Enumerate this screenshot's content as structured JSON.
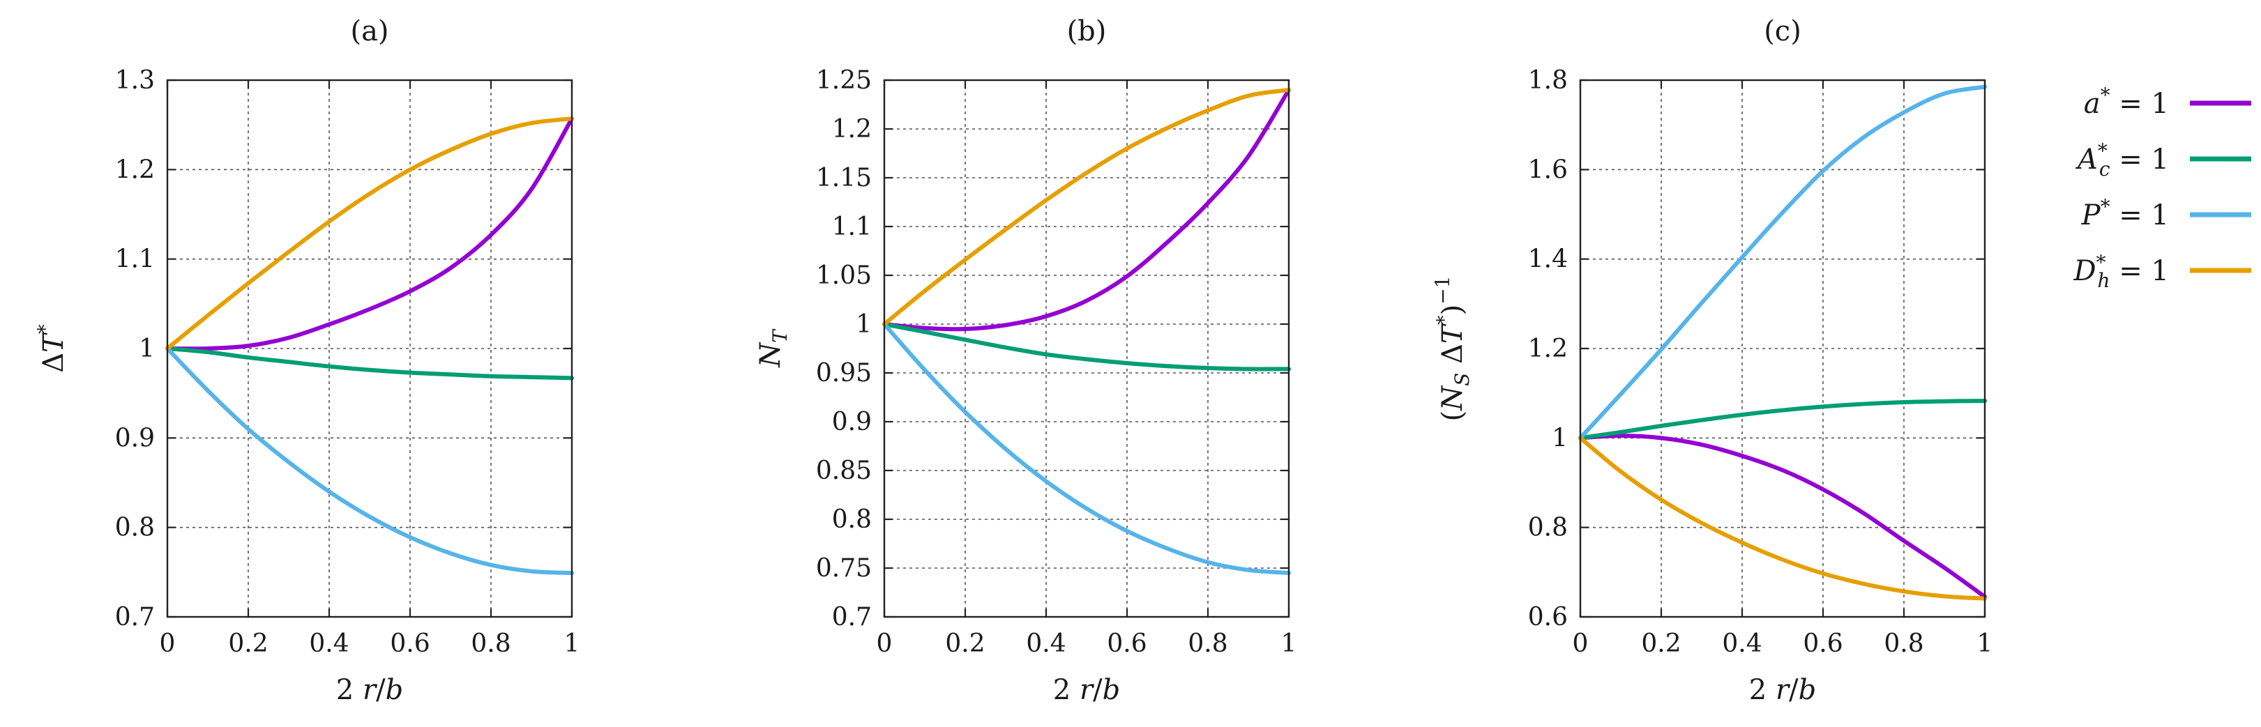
{
  "chart_data": [
    {
      "type": "line",
      "title": "(a)",
      "xlabel": "2 r/b",
      "ylabel": "ΔT*",
      "xlim": [
        0,
        1
      ],
      "ylim": [
        0.7,
        1.3
      ],
      "xticks": [
        "0",
        "0.2",
        "0.4",
        "0.6",
        "0.8",
        "1"
      ],
      "yticks": [
        "0.7",
        "0.8",
        "0.9",
        "1",
        "1.1",
        "1.2",
        "1.3"
      ],
      "grid": true,
      "series": [
        {
          "name": "a* = 1",
          "color": "#9400d3",
          "x": [
            0,
            0.1,
            0.2,
            0.3,
            0.4,
            0.5,
            0.6,
            0.7,
            0.8,
            0.9,
            1.0
          ],
          "values": [
            1.0,
            1.0,
            1.003,
            1.012,
            1.027,
            1.044,
            1.064,
            1.09,
            1.127,
            1.178,
            1.257
          ]
        },
        {
          "name": "A*c = 1",
          "color": "#009e73",
          "x": [
            0,
            0.1,
            0.2,
            0.3,
            0.4,
            0.5,
            0.6,
            0.7,
            0.8,
            0.9,
            1.0
          ],
          "values": [
            1.0,
            0.996,
            0.99,
            0.985,
            0.98,
            0.976,
            0.973,
            0.971,
            0.969,
            0.968,
            0.967
          ]
        },
        {
          "name": "P* = 1",
          "color": "#56b4e9",
          "x": [
            0,
            0.1,
            0.2,
            0.3,
            0.4,
            0.5,
            0.6,
            0.7,
            0.8,
            0.9,
            1.0
          ],
          "values": [
            1.0,
            0.953,
            0.91,
            0.873,
            0.84,
            0.812,
            0.789,
            0.771,
            0.758,
            0.751,
            0.749
          ]
        },
        {
          "name": "D*h = 1",
          "color": "#e69f00",
          "x": [
            0,
            0.1,
            0.2,
            0.3,
            0.4,
            0.5,
            0.6,
            0.7,
            0.8,
            0.9,
            1.0
          ],
          "values": [
            1.0,
            1.037,
            1.073,
            1.108,
            1.142,
            1.173,
            1.2,
            1.222,
            1.24,
            1.252,
            1.257
          ]
        }
      ]
    },
    {
      "type": "line",
      "title": "(b)",
      "xlabel": "2 r/b",
      "ylabel": "N_T",
      "xlim": [
        0,
        1
      ],
      "ylim": [
        0.7,
        1.25
      ],
      "xticks": [
        "0",
        "0.2",
        "0.4",
        "0.6",
        "0.8",
        "1"
      ],
      "yticks": [
        "0.7",
        "0.75",
        "0.8",
        "0.85",
        "0.9",
        "0.95",
        "1",
        "1.05",
        "1.1",
        "1.15",
        "1.2",
        "1.25"
      ],
      "grid": true,
      "series": [
        {
          "name": "a* = 1",
          "color": "#9400d3",
          "x": [
            0,
            0.1,
            0.2,
            0.3,
            0.4,
            0.5,
            0.6,
            0.7,
            0.8,
            0.9,
            1.0
          ],
          "values": [
            1.0,
            0.996,
            0.995,
            0.999,
            1.008,
            1.024,
            1.049,
            1.084,
            1.124,
            1.172,
            1.24
          ]
        },
        {
          "name": "A*c = 1",
          "color": "#009e73",
          "x": [
            0,
            0.1,
            0.2,
            0.3,
            0.4,
            0.5,
            0.6,
            0.7,
            0.8,
            0.9,
            1.0
          ],
          "values": [
            1.0,
            0.992,
            0.984,
            0.976,
            0.969,
            0.964,
            0.96,
            0.957,
            0.955,
            0.954,
            0.954
          ]
        },
        {
          "name": "P* = 1",
          "color": "#56b4e9",
          "x": [
            0,
            0.1,
            0.2,
            0.3,
            0.4,
            0.5,
            0.6,
            0.7,
            0.8,
            0.9,
            1.0
          ],
          "values": [
            1.0,
            0.953,
            0.91,
            0.872,
            0.839,
            0.811,
            0.788,
            0.77,
            0.756,
            0.748,
            0.745
          ]
        },
        {
          "name": "D*h = 1",
          "color": "#e69f00",
          "x": [
            0,
            0.1,
            0.2,
            0.3,
            0.4,
            0.5,
            0.6,
            0.7,
            0.8,
            0.9,
            1.0
          ],
          "values": [
            1.0,
            1.034,
            1.066,
            1.097,
            1.127,
            1.155,
            1.18,
            1.201,
            1.219,
            1.234,
            1.24
          ]
        }
      ]
    },
    {
      "type": "line",
      "title": "(c)",
      "xlabel": "2 r/b",
      "ylabel": "(N_S ΔT*)^-1",
      "xlim": [
        0,
        1
      ],
      "ylim": [
        0.6,
        1.8
      ],
      "xticks": [
        "0",
        "0.2",
        "0.4",
        "0.6",
        "0.8",
        "1"
      ],
      "yticks": [
        "0.6",
        "0.8",
        "1",
        "1.2",
        "1.4",
        "1.6",
        "1.8"
      ],
      "grid": true,
      "series": [
        {
          "name": "a* = 1",
          "color": "#9400d3",
          "x": [
            0,
            0.1,
            0.2,
            0.3,
            0.4,
            0.5,
            0.6,
            0.7,
            0.8,
            0.9,
            1.0
          ],
          "values": [
            1.0,
            1.005,
            1.0,
            0.985,
            0.96,
            0.928,
            0.885,
            0.832,
            0.77,
            0.71,
            0.645
          ]
        },
        {
          "name": "A*c = 1",
          "color": "#009e73",
          "x": [
            0,
            0.1,
            0.2,
            0.3,
            0.4,
            0.5,
            0.6,
            0.7,
            0.8,
            0.9,
            1.0
          ],
          "values": [
            1.0,
            1.013,
            1.027,
            1.04,
            1.052,
            1.062,
            1.07,
            1.076,
            1.08,
            1.082,
            1.083
          ]
        },
        {
          "name": "P* = 1",
          "color": "#56b4e9",
          "x": [
            0,
            0.1,
            0.2,
            0.3,
            0.4,
            0.5,
            0.6,
            0.7,
            0.8,
            0.9,
            1.0
          ],
          "values": [
            1.0,
            1.098,
            1.198,
            1.302,
            1.404,
            1.504,
            1.597,
            1.672,
            1.728,
            1.77,
            1.785
          ]
        },
        {
          "name": "D*h = 1",
          "color": "#e69f00",
          "x": [
            0,
            0.1,
            0.2,
            0.3,
            0.4,
            0.5,
            0.6,
            0.7,
            0.8,
            0.9,
            1.0
          ],
          "values": [
            1.0,
            0.925,
            0.862,
            0.81,
            0.766,
            0.728,
            0.697,
            0.674,
            0.657,
            0.646,
            0.641
          ]
        }
      ]
    }
  ],
  "legend": {
    "placement": "right",
    "entries": [
      {
        "name": "a* = 1",
        "color": "#9400d3"
      },
      {
        "name": "A*c = 1",
        "color": "#009e73"
      },
      {
        "name": "P* = 1",
        "color": "#56b4e9"
      },
      {
        "name": "D*h = 1",
        "color": "#e69f00"
      }
    ]
  }
}
